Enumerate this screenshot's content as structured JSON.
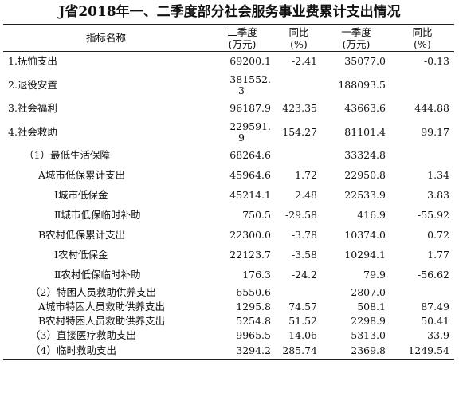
{
  "title": "J省2018年一、二季度部分社会服务事业费累计支出情况",
  "header": {
    "name": "指标名称",
    "q2": "二季度",
    "q2_unit": "(万元)",
    "yoy1": "同比",
    "yoy1_unit": "(%)",
    "q1": "一季度",
    "q1_unit": "(万元)",
    "yoy2": "同比",
    "yoy2_unit": "(%)"
  },
  "rows": [
    {
      "name": "1.抚恤支出",
      "q2": "69200.1",
      "yoy1": "-2.41",
      "q1": "35077.0",
      "yoy2": "-0.13"
    },
    {
      "name": "2.退役安置",
      "q2": "381552.",
      "q2_cont": "3",
      "yoy1": "",
      "q1": "188093.5",
      "yoy2": ""
    },
    {
      "name": "3.社会福利",
      "q2": "96187.9",
      "yoy1": "423.35",
      "q1": "43663.6",
      "yoy2": "444.88"
    },
    {
      "name": "4.社会救助",
      "q2": "229591.",
      "q2_cont": "9",
      "yoy1": "154.27",
      "q1": "81101.4",
      "yoy2": "99.17"
    },
    {
      "name": "（1）最低生活保障",
      "q2": "68264.6",
      "yoy1": "",
      "q1": "33324.8",
      "yoy2": ""
    },
    {
      "name": "A城市低保累计支出",
      "q2": "45964.6",
      "yoy1": "1.72",
      "q1": "22950.8",
      "yoy2": "1.34"
    },
    {
      "name": "Ⅰ城市低保金",
      "q2": "45214.1",
      "yoy1": "2.48",
      "q1": "22533.9",
      "yoy2": "3.83"
    },
    {
      "name": "Ⅱ城市低保临时补助",
      "q2": "750.5",
      "yoy1": "-29.58",
      "q1": "416.9",
      "yoy2": "-55.92"
    },
    {
      "name": "B农村低保累计支出",
      "q2": "22300.0",
      "yoy1": "-3.78",
      "q1": "10374.0",
      "yoy2": "0.72"
    },
    {
      "name": "Ⅰ农村低保金",
      "q2": "22123.7",
      "yoy1": "-3.58",
      "q1": "10294.1",
      "yoy2": "1.77"
    },
    {
      "name": "Ⅱ农村低保临时补助",
      "q2": "176.3",
      "yoy1": "-24.2",
      "q1": "79.9",
      "yoy2": "-56.62"
    },
    {
      "name": "（2）特困人员救助供养支出",
      "q2": "6550.6",
      "yoy1": "",
      "q1": "2807.0",
      "yoy2": ""
    },
    {
      "name": "A城市特困人员救助供养支出",
      "q2": "1295.8",
      "yoy1": "74.57",
      "q1": "508.1",
      "yoy2": "87.49"
    },
    {
      "name": "B农村特困人员救助供养支出",
      "q2": "5254.8",
      "yoy1": "51.52",
      "q1": "2298.9",
      "yoy2": "50.41"
    },
    {
      "name": "（3）直接医疗救助支出",
      "q2": "9965.5",
      "yoy1": "14.06",
      "q1": "5313.0",
      "yoy2": "33.9"
    },
    {
      "name": "（4）临时救助支出",
      "q2": "3294.2",
      "yoy1": "285.74",
      "q1": "2369.8",
      "yoy2": "1249.54"
    }
  ]
}
